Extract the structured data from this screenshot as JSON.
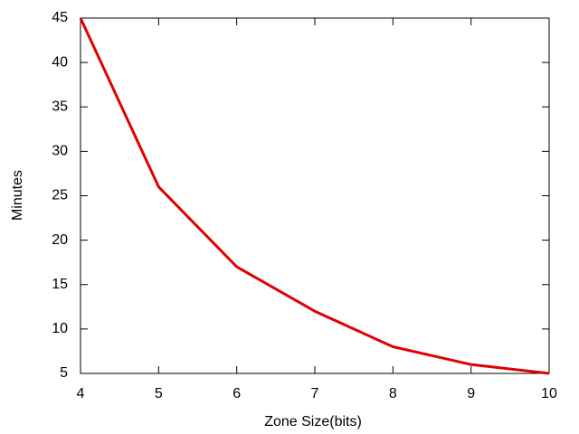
{
  "chart_data": {
    "type": "line",
    "xlabel": "Zone Size(bits)",
    "ylabel": "Minutes",
    "x": [
      4,
      5,
      6,
      7,
      8,
      9,
      10
    ],
    "series": [
      {
        "color": "#e00000",
        "values": [
          45,
          26,
          17,
          12,
          8,
          6,
          5
        ]
      }
    ],
    "xlim": [
      4,
      10
    ],
    "xticks": [
      4,
      5,
      6,
      7,
      8,
      9,
      10
    ],
    "ylim": [
      5,
      45
    ],
    "yticks": [
      5,
      10,
      15,
      20,
      25,
      30,
      35,
      40,
      45
    ]
  }
}
